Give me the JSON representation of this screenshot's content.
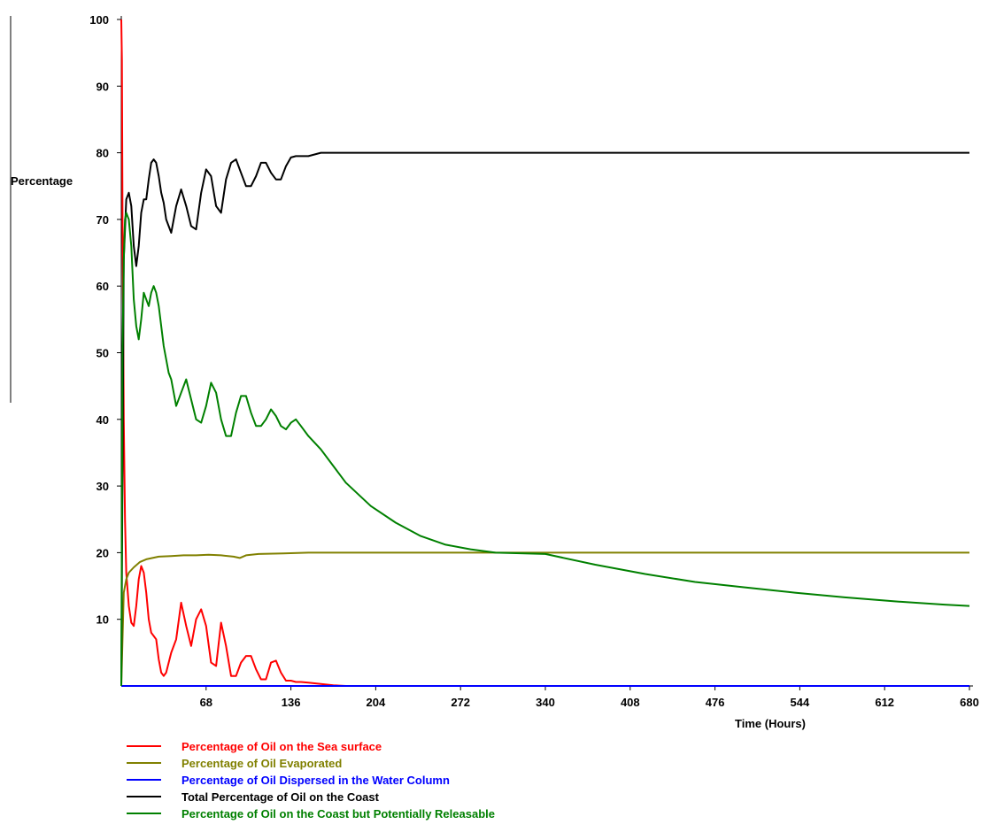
{
  "chart_data": {
    "type": "line",
    "xlabel": "Time (Hours)",
    "ylabel": "Percentage",
    "xlim": [
      0,
      680
    ],
    "ylim": [
      0,
      100
    ],
    "x_ticks": [
      68,
      136,
      204,
      272,
      340,
      408,
      476,
      544,
      612,
      680
    ],
    "y_ticks": [
      10,
      20,
      30,
      40,
      50,
      60,
      70,
      80,
      90,
      100
    ],
    "grid": false,
    "legend_position": "bottom-left",
    "series": [
      {
        "name": "Percentage of Oil on the Sea surface",
        "color": "#ff0000",
        "x": [
          0,
          0.5,
          1,
          2,
          3,
          4,
          6,
          8,
          10,
          12,
          14,
          16,
          18,
          20,
          22,
          24,
          26,
          28,
          30,
          32,
          34,
          36,
          40,
          44,
          48,
          52,
          56,
          60,
          64,
          68,
          72,
          76,
          80,
          84,
          88,
          92,
          96,
          100,
          104,
          108,
          112,
          116,
          120,
          124,
          128,
          132,
          136,
          140,
          144,
          150,
          160,
          170,
          180,
          200,
          250,
          300,
          400,
          500,
          600,
          680
        ],
        "y": [
          100,
          94,
          70,
          40,
          25,
          17,
          12,
          9.5,
          9,
          12,
          16,
          18,
          17,
          14,
          10,
          8,
          7.5,
          7,
          4,
          2,
          1.5,
          2,
          5,
          7,
          12.5,
          9,
          6,
          10,
          11.5,
          9,
          3.5,
          3,
          9.5,
          6,
          1.5,
          1.5,
          3.5,
          4.5,
          4.5,
          2.5,
          1,
          1,
          3.5,
          3.8,
          2,
          0.8,
          0.8,
          0.6,
          0.6,
          0.5,
          0.3,
          0.1,
          0,
          0,
          0,
          0,
          0,
          0,
          0,
          0
        ]
      },
      {
        "name": "Percentage of Oil Evaporated",
        "color": "#808000",
        "x": [
          0,
          2,
          4,
          6,
          10,
          15,
          20,
          30,
          40,
          50,
          60,
          70,
          80,
          90,
          95,
          100,
          110,
          130,
          150,
          200,
          300,
          400,
          500,
          600,
          680
        ],
        "y": [
          0,
          14,
          16,
          17,
          17.8,
          18.6,
          19,
          19.4,
          19.5,
          19.6,
          19.6,
          19.7,
          19.6,
          19.4,
          19.2,
          19.6,
          19.8,
          19.9,
          20,
          20,
          20,
          20,
          20,
          20,
          20
        ]
      },
      {
        "name": "Percentage of Oil Dispersed in the Water Column",
        "color": "#0000ff",
        "x": [
          0,
          680
        ],
        "y": [
          0,
          0
        ]
      },
      {
        "name": "Total Percentage of Oil on the Coast",
        "color": "#000000",
        "x": [
          0,
          2,
          4,
          6,
          8,
          10,
          12,
          14,
          16,
          18,
          20,
          22,
          24,
          26,
          28,
          30,
          32,
          34,
          36,
          38,
          40,
          44,
          48,
          52,
          56,
          60,
          64,
          68,
          72,
          76,
          80,
          84,
          88,
          92,
          96,
          100,
          104,
          108,
          112,
          116,
          120,
          124,
          128,
          132,
          136,
          140,
          144,
          150,
          160,
          170,
          180,
          200,
          300,
          400,
          500,
          600,
          680
        ],
        "y": [
          0,
          64,
          73,
          74,
          72,
          66,
          63,
          66,
          71,
          73,
          73,
          76,
          78.5,
          79,
          78.5,
          76.5,
          74,
          72.5,
          70,
          69,
          68,
          72,
          74.5,
          72,
          69,
          68.5,
          74,
          77.5,
          76.5,
          72,
          71,
          76,
          78.5,
          79,
          77,
          75,
          75,
          76.5,
          78.5,
          78.5,
          77,
          76,
          76,
          78,
          79.3,
          79.5,
          79.5,
          79.5,
          80,
          80,
          80,
          80,
          80,
          80,
          80,
          80,
          80
        ]
      },
      {
        "name": "Percentage of Oil on the Coast but Potentially Releasable",
        "color": "#008000",
        "x": [
          0,
          1,
          2,
          3,
          4,
          5,
          6,
          8,
          10,
          12,
          14,
          16,
          18,
          20,
          22,
          24,
          26,
          28,
          30,
          32,
          34,
          36,
          38,
          40,
          44,
          48,
          52,
          56,
          60,
          64,
          68,
          72,
          76,
          80,
          84,
          88,
          92,
          96,
          100,
          104,
          108,
          112,
          116,
          120,
          124,
          128,
          132,
          136,
          140,
          144,
          150,
          160,
          170,
          180,
          200,
          220,
          240,
          260,
          280,
          300,
          340,
          380,
          420,
          460,
          500,
          540,
          580,
          620,
          660,
          680
        ],
        "y": [
          0,
          50,
          64,
          70,
          71,
          70.5,
          70,
          66,
          58,
          54,
          52,
          55,
          59,
          58,
          57,
          59,
          60,
          59,
          57,
          54,
          51,
          49,
          47,
          46,
          42,
          44,
          46,
          43,
          40,
          39.5,
          42,
          45.5,
          44,
          40,
          37.5,
          37.5,
          41,
          43.5,
          43.5,
          41,
          39,
          39,
          40,
          41.5,
          40.5,
          39,
          38.5,
          39.5,
          40,
          39,
          37.5,
          35.5,
          33,
          30.5,
          27,
          24.5,
          22.5,
          21.2,
          20.5,
          20,
          19.8,
          18.2,
          16.8,
          15.6,
          14.8,
          14,
          13.3,
          12.7,
          12.2,
          12
        ]
      }
    ]
  }
}
